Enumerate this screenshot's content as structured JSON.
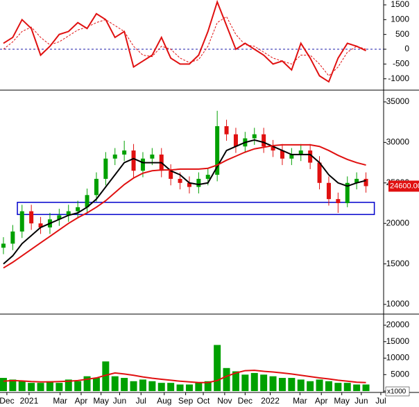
{
  "chart_data": [
    {
      "type": "line",
      "xlim": [
        -0.37,
        40.9
      ],
      "ylim": [
        -1336,
        1664
      ],
      "yticks": [
        -1000,
        -500,
        0,
        500,
        1000,
        1500
      ],
      "zero_line_color": "#1a1aa8",
      "series": [
        {
          "color": "#e01010",
          "dashed": false,
          "values": [
            200,
            400,
            1000,
            700,
            -200,
            100,
            500,
            600,
            900,
            700,
            1200,
            1000,
            400,
            600,
            -600,
            -400,
            -200,
            400,
            -300,
            -500,
            -500,
            -200,
            600,
            1600,
            800,
            0,
            200,
            0,
            -200,
            -500,
            -400,
            -700,
            200,
            -300,
            -900,
            -1100,
            -300,
            200,
            100,
            -50
          ]
        },
        {
          "color": "#e01010",
          "dashed": true,
          "values": [
            0,
            250,
            600,
            750,
            400,
            150,
            250,
            450,
            650,
            750,
            900,
            1000,
            800,
            600,
            100,
            -200,
            -250,
            100,
            0,
            -300,
            -450,
            -350,
            100,
            900,
            1100,
            500,
            150,
            100,
            -100,
            -300,
            -400,
            -500,
            -200,
            -200,
            -500,
            -900,
            -600,
            -100,
            100,
            0
          ]
        }
      ]
    },
    {
      "type": "candlestick",
      "xlim": [
        -0.37,
        40.9
      ],
      "ylim": [
        8890,
        36280
      ],
      "yticks": [
        10000,
        15000,
        20000,
        25000,
        30000,
        35000
      ],
      "up_color": "#00a000",
      "down_color": "#e01010",
      "open": [
        17000,
        17500,
        19000,
        21500,
        20000,
        19500,
        20500,
        21000,
        21500,
        22000,
        23500,
        25500,
        28000,
        28500,
        29000,
        26500,
        28000,
        28500,
        26500,
        25500,
        25000,
        24500,
        25500,
        26000,
        32000,
        31000,
        29500,
        30500,
        31000,
        29500,
        29000,
        28000,
        28500,
        29000,
        27500,
        25000,
        23000,
        22500,
        25000,
        25500
      ],
      "high": [
        18300,
        19800,
        22300,
        22300,
        20800,
        21300,
        21800,
        22300,
        22800,
        24300,
        26300,
        28800,
        29300,
        30200,
        29800,
        28800,
        29300,
        29300,
        27300,
        26300,
        25800,
        26300,
        26800,
        33900,
        32800,
        31800,
        31300,
        31800,
        31800,
        30300,
        29800,
        29300,
        29800,
        29800,
        28300,
        25800,
        23800,
        25800,
        26300,
        26300
      ],
      "low": [
        16200,
        16700,
        18200,
        19200,
        18700,
        18700,
        19700,
        20200,
        20700,
        21200,
        22700,
        24700,
        27200,
        27700,
        25700,
        25700,
        27200,
        25700,
        24700,
        24200,
        23700,
        23700,
        24700,
        25200,
        30200,
        28700,
        28700,
        29700,
        28700,
        28200,
        27200,
        27200,
        27700,
        26700,
        24200,
        22200,
        21300,
        22000,
        24200,
        23800
      ],
      "close": [
        17500,
        19000,
        21500,
        20000,
        19500,
        20500,
        21000,
        21500,
        22000,
        23500,
        25500,
        28000,
        28500,
        29000,
        26500,
        28000,
        28500,
        26500,
        25500,
        25000,
        24500,
        25500,
        26000,
        32000,
        31000,
        29500,
        30500,
        31000,
        29500,
        29000,
        28000,
        28500,
        29000,
        27500,
        25000,
        23000,
        22500,
        25000,
        25500,
        24600
      ],
      "series": [
        {
          "color": "#000000",
          "values": [
            15000,
            16000,
            17500,
            18500,
            19500,
            20000,
            20500,
            21000,
            21300,
            22000,
            23000,
            24500,
            26000,
            27500,
            28000,
            27500,
            27500,
            27500,
            26500,
            26000,
            25000,
            24800,
            25000,
            27000,
            29000,
            29500,
            30000,
            30300,
            30000,
            29500,
            29000,
            28500,
            28500,
            28500,
            27500,
            26000,
            25000,
            24600,
            25000,
            25300
          ]
        },
        {
          "color": "#e01010",
          "values": [
            14500,
            15200,
            16000,
            16800,
            17600,
            18400,
            19200,
            20000,
            20700,
            21300,
            22000,
            22800,
            23800,
            24800,
            25600,
            26200,
            26500,
            26600,
            26600,
            26700,
            26700,
            26700,
            26800,
            27200,
            27800,
            28300,
            28800,
            29200,
            29400,
            29600,
            29700,
            29700,
            29700,
            29700,
            29500,
            29000,
            28400,
            27900,
            27500,
            27200
          ]
        }
      ],
      "zone": {
        "x": [
          1.5,
          39.9
        ],
        "low": 21100,
        "high": 22600,
        "color": "#0000cc"
      },
      "last_price": {
        "value": 24600,
        "label": "24600.00"
      }
    },
    {
      "type": "bar",
      "xlim": [
        -0.37,
        40.9
      ],
      "ylim": [
        -200,
        22950
      ],
      "yticks": [
        0,
        5000,
        10000,
        15000,
        20000
      ],
      "unit_label": "x1000",
      "color": "#00a000",
      "values": [
        4000,
        3500,
        3000,
        2500,
        2500,
        3000,
        2500,
        3500,
        3000,
        4500,
        4000,
        9000,
        4500,
        4000,
        3000,
        3500,
        3000,
        2500,
        2500,
        2000,
        2000,
        2500,
        3000,
        14000,
        7000,
        6000,
        5000,
        5500,
        5000,
        4500,
        4000,
        4000,
        3500,
        3000,
        3500,
        3000,
        2500,
        2500,
        2000,
        2000
      ],
      "series": [
        {
          "color": "#e01010",
          "values": [
            3000,
            3200,
            3100,
            2900,
            2800,
            2800,
            2900,
            3000,
            3200,
            3600,
            4000,
            4800,
            5500,
            5200,
            4800,
            4300,
            3900,
            3600,
            3300,
            3000,
            2800,
            2600,
            2600,
            3200,
            4500,
            5500,
            6200,
            6300,
            6000,
            5800,
            5500,
            5200,
            4800,
            4400,
            4000,
            3700,
            3300,
            3000,
            2700,
            2600
          ]
        }
      ],
      "xticks": [
        {
          "value": 0.37,
          "label": "Dec"
        },
        {
          "value": 2.76,
          "label": "2021"
        },
        {
          "value": 6.1,
          "label": "Mar"
        },
        {
          "value": 8.36,
          "label": "Apr"
        },
        {
          "value": 10.5,
          "label": "May"
        },
        {
          "value": 12.5,
          "label": "Jun"
        },
        {
          "value": 14.8,
          "label": "Jul"
        },
        {
          "value": 17.3,
          "label": "Aug"
        },
        {
          "value": 19.6,
          "label": "Sep"
        },
        {
          "value": 21.5,
          "label": "Oct"
        },
        {
          "value": 23.8,
          "label": "Nov"
        },
        {
          "value": 26.0,
          "label": "Dec"
        },
        {
          "value": 28.7,
          "label": "2022"
        },
        {
          "value": 31.9,
          "label": "Mar"
        },
        {
          "value": 34.2,
          "label": "Apr"
        },
        {
          "value": 36.4,
          "label": "May"
        },
        {
          "value": 38.5,
          "label": "Jun"
        },
        {
          "value": 40.6,
          "label": "Jul"
        }
      ]
    }
  ]
}
